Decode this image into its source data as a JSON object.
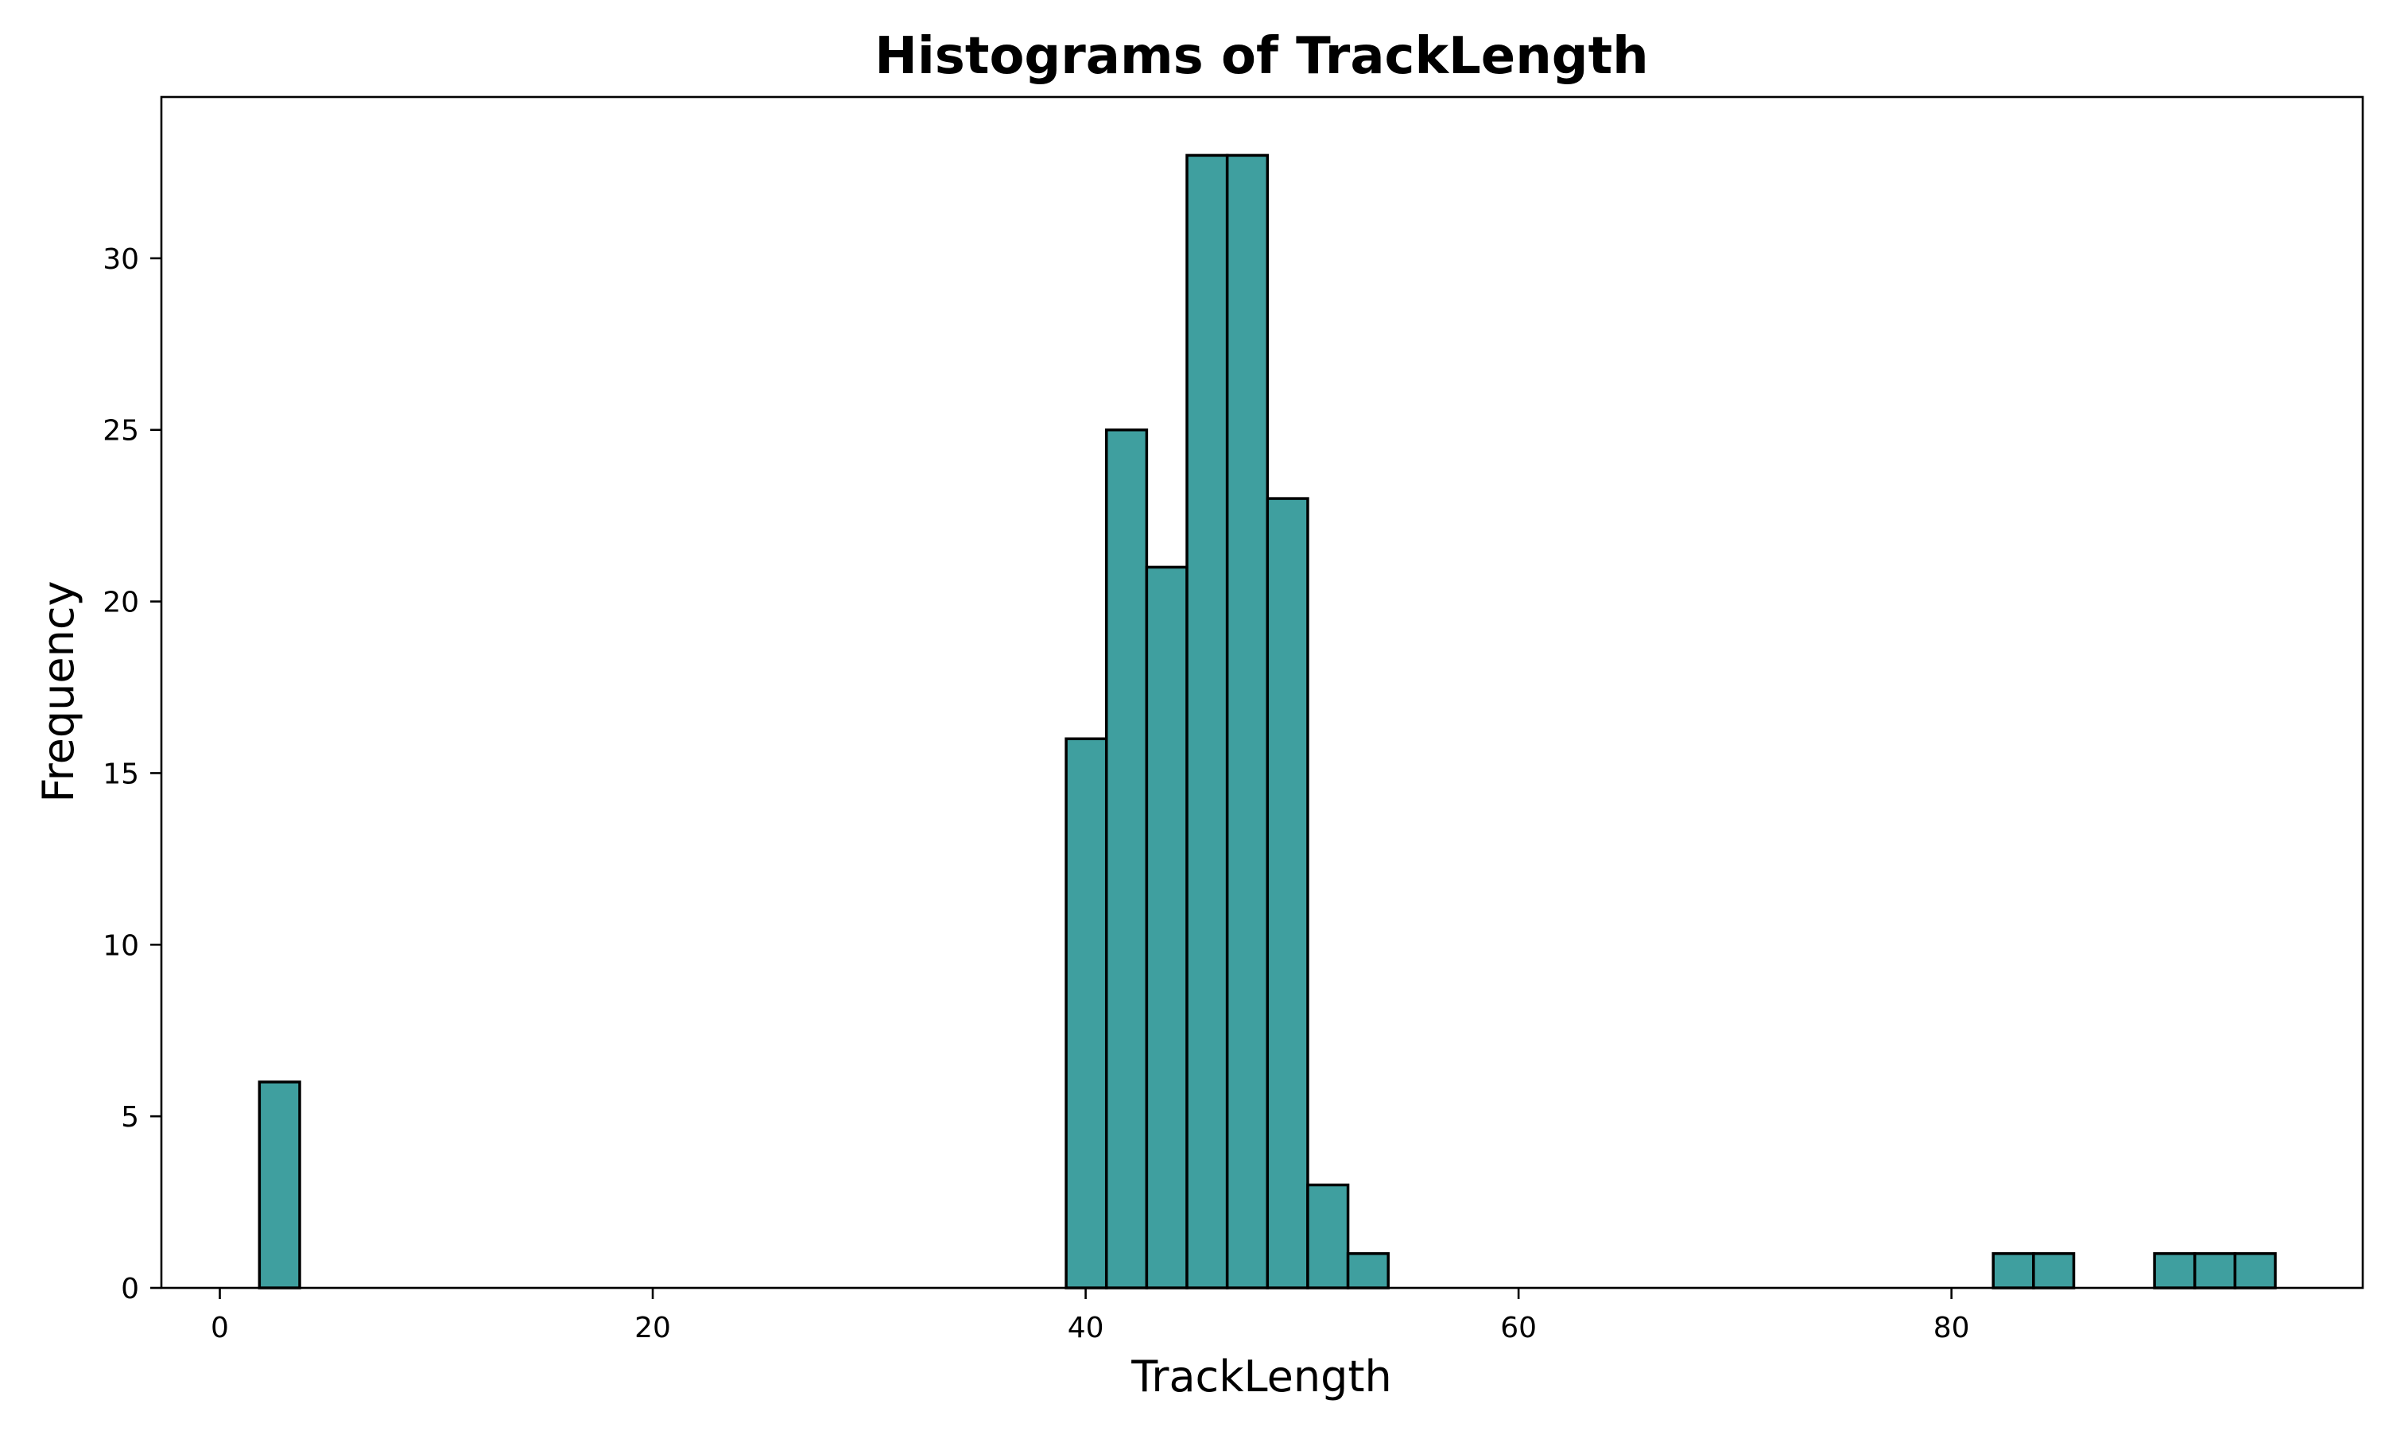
{
  "chart_data": {
    "type": "bar",
    "title": "Histograms of TrackLength",
    "xlabel": "TrackLength",
    "ylabel": "Frequency",
    "xlim": [
      -2.7,
      99
    ],
    "ylim": [
      0,
      34.7
    ],
    "xticks": [
      0,
      20,
      40,
      60,
      80
    ],
    "yticks": [
      0,
      5,
      10,
      15,
      20,
      25,
      30
    ],
    "bar_color": "#3f9f9f",
    "edge_color": "#000000",
    "grid": false,
    "bins": [
      {
        "x0": 1.83,
        "x1": 3.69,
        "count": 6
      },
      {
        "x0": 39.1,
        "x1": 40.96,
        "count": 16
      },
      {
        "x0": 40.96,
        "x1": 42.82,
        "count": 25
      },
      {
        "x0": 42.82,
        "x1": 44.68,
        "count": 21
      },
      {
        "x0": 44.68,
        "x1": 46.54,
        "count": 33
      },
      {
        "x0": 46.54,
        "x1": 48.4,
        "count": 33
      },
      {
        "x0": 48.4,
        "x1": 50.26,
        "count": 23
      },
      {
        "x0": 50.26,
        "x1": 52.12,
        "count": 3
      },
      {
        "x0": 52.12,
        "x1": 53.98,
        "count": 1
      },
      {
        "x0": 81.93,
        "x1": 83.79,
        "count": 1
      },
      {
        "x0": 83.79,
        "x1": 85.65,
        "count": 1
      },
      {
        "x0": 89.38,
        "x1": 91.24,
        "count": 1
      },
      {
        "x0": 91.24,
        "x1": 93.1,
        "count": 1
      },
      {
        "x0": 93.1,
        "x1": 94.96,
        "count": 1
      }
    ]
  }
}
